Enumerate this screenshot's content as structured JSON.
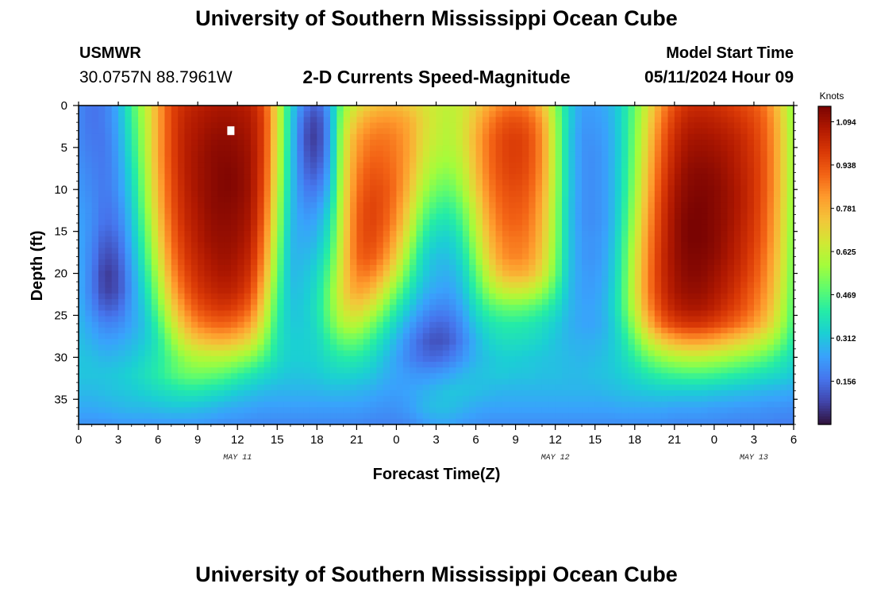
{
  "header": {
    "title": "University of Southern Mississippi Ocean Cube",
    "station_id": "USMWR",
    "station_coords": "30.0757N  88.7961W",
    "subtitle": "2-D Currents Speed-Magnitude",
    "model_label": "Model Start Time",
    "model_time": "05/11/2024 Hour 09"
  },
  "footer": {
    "title": "University of Southern Mississippi Ocean Cube"
  },
  "colors": {
    "scale": [
      "#30123b",
      "#4145ab",
      "#4675ed",
      "#39a2fc",
      "#1bcfd4",
      "#24eca6",
      "#61fc6c",
      "#a4fc3b",
      "#d1e834",
      "#f3c63a",
      "#fe9b2d",
      "#f36315",
      "#d93806",
      "#b11901",
      "#7a0402"
    ]
  },
  "chart_data": {
    "type": "heatmap",
    "xlabel": "Forecast Time(Z)",
    "ylabel": "Depth (ft)",
    "legend_unit": "Knots",
    "x_range": [
      0,
      54
    ],
    "y_range": [
      0,
      38
    ],
    "x_ticks": [
      "0",
      "3",
      "6",
      "9",
      "12",
      "15",
      "18",
      "21",
      "0",
      "3",
      "6",
      "9",
      "12",
      "15",
      "18",
      "21",
      "0",
      "3",
      "6"
    ],
    "y_ticks": [
      "0",
      "5",
      "10",
      "15",
      "20",
      "25",
      "30",
      "35"
    ],
    "date_labels": [
      {
        "text": "MAY 11",
        "hour": 12
      },
      {
        "text": "MAY 12",
        "hour": 36
      },
      {
        "text": "MAY 13",
        "hour": 51
      }
    ],
    "colorbar_ticks": [
      "1.094",
      "0.938",
      "0.781",
      "0.625",
      "0.469",
      "0.312",
      "0.156"
    ],
    "colorbar_range": [
      0,
      1.15
    ],
    "grid_hours": [
      0,
      1,
      2,
      3,
      4,
      5,
      6,
      7,
      8,
      9,
      10,
      11,
      12,
      13,
      14,
      15,
      16,
      17,
      18,
      19,
      20,
      21,
      22,
      23,
      24,
      25,
      26,
      27,
      28,
      29,
      30,
      31,
      32,
      33,
      34,
      35,
      36,
      37,
      38,
      39,
      40,
      41,
      42,
      43,
      44,
      45,
      46,
      47,
      48,
      49,
      50,
      51,
      52,
      53,
      54
    ],
    "grid_depths_ft": [
      0,
      2,
      4,
      6,
      8,
      10,
      12,
      14,
      16,
      18,
      20,
      22,
      24,
      26,
      28,
      30,
      32,
      34,
      36,
      38
    ],
    "speed_knots_by_depth": [
      [
        0.2,
        0.16,
        0.18,
        0.27,
        0.44,
        0.61,
        0.8,
        0.96,
        1.02,
        1.05,
        1.07,
        1.08,
        1.07,
        1.05,
        0.95,
        0.68,
        0.35,
        0.18,
        0.12,
        0.26,
        0.55,
        0.67,
        0.73,
        0.76,
        0.76,
        0.73,
        0.68,
        0.64,
        0.62,
        0.65,
        0.72,
        0.8,
        0.86,
        0.88,
        0.85,
        0.76,
        0.55,
        0.34,
        0.24,
        0.24,
        0.27,
        0.35,
        0.5,
        0.67,
        0.83,
        0.95,
        1.01,
        1.02,
        1.01,
        0.99,
        0.96,
        0.93,
        0.86,
        0.72,
        0.53
      ],
      [
        0.2,
        0.16,
        0.18,
        0.26,
        0.42,
        0.6,
        0.8,
        0.96,
        1.04,
        1.07,
        1.09,
        1.1,
        1.09,
        1.07,
        0.97,
        0.68,
        0.34,
        0.13,
        0.07,
        0.24,
        0.6,
        0.75,
        0.82,
        0.84,
        0.83,
        0.79,
        0.7,
        0.64,
        0.61,
        0.66,
        0.76,
        0.86,
        0.93,
        0.95,
        0.92,
        0.82,
        0.58,
        0.34,
        0.23,
        0.23,
        0.26,
        0.35,
        0.51,
        0.7,
        0.87,
        0.99,
        1.05,
        1.06,
        1.05,
        1.03,
        1.0,
        0.96,
        0.89,
        0.74,
        0.54
      ],
      [
        0.2,
        0.17,
        0.17,
        0.25,
        0.4,
        0.59,
        0.8,
        0.96,
        1.05,
        1.08,
        1.11,
        1.12,
        1.11,
        1.08,
        0.97,
        0.67,
        0.34,
        0.11,
        0.06,
        0.24,
        0.63,
        0.81,
        0.87,
        0.88,
        0.86,
        0.8,
        0.69,
        0.63,
        0.6,
        0.66,
        0.78,
        0.89,
        0.96,
        0.98,
        0.95,
        0.84,
        0.59,
        0.33,
        0.22,
        0.22,
        0.25,
        0.35,
        0.52,
        0.72,
        0.9,
        1.02,
        1.08,
        1.09,
        1.08,
        1.06,
        1.03,
        0.98,
        0.9,
        0.75,
        0.55
      ],
      [
        0.21,
        0.18,
        0.17,
        0.24,
        0.38,
        0.58,
        0.8,
        0.96,
        1.05,
        1.09,
        1.12,
        1.13,
        1.12,
        1.09,
        0.97,
        0.66,
        0.33,
        0.13,
        0.08,
        0.25,
        0.64,
        0.83,
        0.9,
        0.9,
        0.87,
        0.8,
        0.67,
        0.6,
        0.58,
        0.64,
        0.77,
        0.89,
        0.96,
        0.98,
        0.95,
        0.84,
        0.59,
        0.33,
        0.22,
        0.21,
        0.25,
        0.35,
        0.53,
        0.74,
        0.92,
        1.04,
        1.1,
        1.11,
        1.1,
        1.08,
        1.04,
        0.99,
        0.91,
        0.75,
        0.55
      ],
      [
        0.22,
        0.19,
        0.17,
        0.23,
        0.36,
        0.56,
        0.79,
        0.95,
        1.05,
        1.09,
        1.12,
        1.14,
        1.13,
        1.09,
        0.96,
        0.65,
        0.33,
        0.15,
        0.12,
        0.27,
        0.65,
        0.86,
        0.93,
        0.92,
        0.88,
        0.78,
        0.64,
        0.56,
        0.54,
        0.61,
        0.75,
        0.88,
        0.95,
        0.97,
        0.94,
        0.83,
        0.59,
        0.33,
        0.22,
        0.21,
        0.25,
        0.36,
        0.54,
        0.76,
        0.94,
        1.06,
        1.12,
        1.13,
        1.12,
        1.09,
        1.05,
        1.0,
        0.91,
        0.75,
        0.55
      ],
      [
        0.23,
        0.2,
        0.17,
        0.22,
        0.34,
        0.54,
        0.77,
        0.94,
        1.04,
        1.09,
        1.12,
        1.14,
        1.13,
        1.09,
        0.95,
        0.63,
        0.32,
        0.18,
        0.17,
        0.3,
        0.66,
        0.88,
        0.95,
        0.94,
        0.88,
        0.75,
        0.59,
        0.51,
        0.49,
        0.57,
        0.72,
        0.86,
        0.93,
        0.95,
        0.92,
        0.81,
        0.58,
        0.33,
        0.22,
        0.21,
        0.25,
        0.36,
        0.56,
        0.78,
        0.96,
        1.08,
        1.13,
        1.14,
        1.13,
        1.1,
        1.06,
        1.0,
        0.91,
        0.75,
        0.54
      ],
      [
        0.24,
        0.21,
        0.16,
        0.2,
        0.32,
        0.52,
        0.75,
        0.93,
        1.03,
        1.08,
        1.12,
        1.13,
        1.12,
        1.08,
        0.93,
        0.61,
        0.31,
        0.21,
        0.22,
        0.34,
        0.67,
        0.9,
        0.97,
        0.94,
        0.86,
        0.71,
        0.53,
        0.45,
        0.43,
        0.51,
        0.67,
        0.83,
        0.91,
        0.93,
        0.9,
        0.79,
        0.57,
        0.32,
        0.22,
        0.21,
        0.25,
        0.37,
        0.58,
        0.8,
        0.98,
        1.09,
        1.14,
        1.15,
        1.13,
        1.1,
        1.06,
        1.0,
        0.9,
        0.74,
        0.53
      ],
      [
        0.25,
        0.21,
        0.15,
        0.18,
        0.3,
        0.49,
        0.72,
        0.91,
        1.02,
        1.07,
        1.11,
        1.12,
        1.11,
        1.07,
        0.91,
        0.59,
        0.3,
        0.24,
        0.26,
        0.38,
        0.68,
        0.91,
        0.97,
        0.93,
        0.83,
        0.66,
        0.47,
        0.39,
        0.38,
        0.46,
        0.63,
        0.8,
        0.89,
        0.91,
        0.88,
        0.77,
        0.56,
        0.32,
        0.22,
        0.21,
        0.25,
        0.38,
        0.6,
        0.82,
        0.99,
        1.1,
        1.15,
        1.15,
        1.13,
        1.1,
        1.05,
        0.99,
        0.89,
        0.73,
        0.52
      ],
      [
        0.26,
        0.2,
        0.12,
        0.15,
        0.28,
        0.46,
        0.69,
        0.89,
        1.0,
        1.06,
        1.1,
        1.11,
        1.1,
        1.05,
        0.88,
        0.56,
        0.29,
        0.26,
        0.29,
        0.41,
        0.69,
        0.91,
        0.96,
        0.9,
        0.78,
        0.6,
        0.41,
        0.34,
        0.33,
        0.41,
        0.59,
        0.76,
        0.86,
        0.88,
        0.86,
        0.75,
        0.55,
        0.32,
        0.23,
        0.22,
        0.26,
        0.4,
        0.62,
        0.84,
        1.0,
        1.1,
        1.15,
        1.15,
        1.13,
        1.09,
        1.04,
        0.98,
        0.88,
        0.72,
        0.51
      ],
      [
        0.26,
        0.19,
        0.09,
        0.12,
        0.26,
        0.43,
        0.65,
        0.86,
        0.98,
        1.04,
        1.08,
        1.1,
        1.08,
        1.03,
        0.85,
        0.53,
        0.29,
        0.28,
        0.32,
        0.45,
        0.7,
        0.9,
        0.93,
        0.86,
        0.72,
        0.53,
        0.36,
        0.3,
        0.3,
        0.37,
        0.54,
        0.72,
        0.83,
        0.86,
        0.83,
        0.73,
        0.53,
        0.32,
        0.23,
        0.22,
        0.27,
        0.41,
        0.64,
        0.85,
        1.01,
        1.1,
        1.14,
        1.14,
        1.12,
        1.08,
        1.03,
        0.96,
        0.86,
        0.71,
        0.5
      ],
      [
        0.27,
        0.18,
        0.06,
        0.1,
        0.24,
        0.39,
        0.6,
        0.82,
        0.95,
        1.02,
        1.06,
        1.08,
        1.06,
        1.0,
        0.81,
        0.5,
        0.29,
        0.3,
        0.35,
        0.49,
        0.71,
        0.86,
        0.87,
        0.78,
        0.63,
        0.46,
        0.33,
        0.28,
        0.27,
        0.33,
        0.48,
        0.65,
        0.76,
        0.79,
        0.77,
        0.68,
        0.51,
        0.31,
        0.24,
        0.23,
        0.28,
        0.42,
        0.65,
        0.86,
        1.01,
        1.09,
        1.13,
        1.13,
        1.1,
        1.06,
        1.01,
        0.94,
        0.84,
        0.69,
        0.49
      ],
      [
        0.27,
        0.18,
        0.07,
        0.1,
        0.23,
        0.36,
        0.55,
        0.77,
        0.91,
        0.99,
        1.03,
        1.05,
        1.03,
        0.96,
        0.76,
        0.47,
        0.3,
        0.31,
        0.37,
        0.52,
        0.71,
        0.81,
        0.78,
        0.67,
        0.52,
        0.39,
        0.29,
        0.25,
        0.24,
        0.3,
        0.43,
        0.56,
        0.64,
        0.66,
        0.64,
        0.57,
        0.45,
        0.3,
        0.24,
        0.24,
        0.29,
        0.43,
        0.65,
        0.86,
        1.0,
        1.08,
        1.11,
        1.11,
        1.08,
        1.04,
        0.98,
        0.91,
        0.82,
        0.67,
        0.48
      ],
      [
        0.28,
        0.2,
        0.12,
        0.14,
        0.24,
        0.33,
        0.5,
        0.7,
        0.85,
        0.94,
        0.98,
        1.0,
        0.97,
        0.9,
        0.7,
        0.44,
        0.31,
        0.32,
        0.38,
        0.52,
        0.67,
        0.73,
        0.67,
        0.55,
        0.42,
        0.32,
        0.24,
        0.2,
        0.2,
        0.26,
        0.37,
        0.46,
        0.5,
        0.51,
        0.49,
        0.45,
        0.38,
        0.29,
        0.25,
        0.25,
        0.3,
        0.43,
        0.63,
        0.83,
        0.97,
        1.05,
        1.08,
        1.08,
        1.05,
        1.0,
        0.95,
        0.88,
        0.79,
        0.64,
        0.46
      ],
      [
        0.29,
        0.24,
        0.19,
        0.2,
        0.25,
        0.31,
        0.44,
        0.62,
        0.77,
        0.86,
        0.9,
        0.91,
        0.88,
        0.81,
        0.63,
        0.41,
        0.32,
        0.32,
        0.37,
        0.49,
        0.6,
        0.62,
        0.54,
        0.44,
        0.34,
        0.25,
        0.18,
        0.14,
        0.15,
        0.22,
        0.32,
        0.38,
        0.41,
        0.41,
        0.4,
        0.37,
        0.33,
        0.28,
        0.25,
        0.25,
        0.29,
        0.4,
        0.57,
        0.76,
        0.9,
        0.97,
        1.0,
        1.0,
        0.97,
        0.93,
        0.88,
        0.82,
        0.73,
        0.6,
        0.44
      ],
      [
        0.3,
        0.27,
        0.24,
        0.25,
        0.28,
        0.32,
        0.4,
        0.54,
        0.67,
        0.74,
        0.77,
        0.78,
        0.75,
        0.69,
        0.55,
        0.39,
        0.33,
        0.33,
        0.35,
        0.43,
        0.5,
        0.5,
        0.44,
        0.36,
        0.28,
        0.2,
        0.13,
        0.1,
        0.12,
        0.19,
        0.28,
        0.34,
        0.37,
        0.37,
        0.36,
        0.34,
        0.31,
        0.28,
        0.27,
        0.27,
        0.3,
        0.37,
        0.49,
        0.63,
        0.73,
        0.79,
        0.82,
        0.82,
        0.8,
        0.76,
        0.72,
        0.67,
        0.61,
        0.52,
        0.4
      ],
      [
        0.31,
        0.3,
        0.28,
        0.29,
        0.31,
        0.35,
        0.4,
        0.48,
        0.56,
        0.6,
        0.61,
        0.61,
        0.58,
        0.54,
        0.46,
        0.37,
        0.33,
        0.33,
        0.34,
        0.38,
        0.41,
        0.41,
        0.37,
        0.31,
        0.25,
        0.19,
        0.15,
        0.14,
        0.17,
        0.22,
        0.28,
        0.31,
        0.33,
        0.33,
        0.32,
        0.31,
        0.3,
        0.29,
        0.28,
        0.29,
        0.31,
        0.35,
        0.42,
        0.5,
        0.56,
        0.6,
        0.62,
        0.62,
        0.6,
        0.58,
        0.55,
        0.52,
        0.48,
        0.42,
        0.36
      ],
      [
        0.31,
        0.31,
        0.31,
        0.32,
        0.34,
        0.37,
        0.41,
        0.46,
        0.5,
        0.51,
        0.5,
        0.48,
        0.44,
        0.4,
        0.36,
        0.33,
        0.31,
        0.31,
        0.32,
        0.34,
        0.35,
        0.34,
        0.32,
        0.28,
        0.25,
        0.23,
        0.22,
        0.23,
        0.25,
        0.28,
        0.3,
        0.31,
        0.32,
        0.31,
        0.31,
        0.3,
        0.3,
        0.29,
        0.29,
        0.3,
        0.31,
        0.33,
        0.36,
        0.4,
        0.43,
        0.45,
        0.46,
        0.46,
        0.45,
        0.43,
        0.41,
        0.39,
        0.37,
        0.35,
        0.32
      ],
      [
        0.29,
        0.29,
        0.3,
        0.31,
        0.32,
        0.34,
        0.36,
        0.38,
        0.4,
        0.4,
        0.38,
        0.36,
        0.33,
        0.31,
        0.29,
        0.28,
        0.28,
        0.28,
        0.28,
        0.29,
        0.29,
        0.28,
        0.27,
        0.25,
        0.24,
        0.25,
        0.27,
        0.29,
        0.31,
        0.31,
        0.3,
        0.29,
        0.28,
        0.28,
        0.28,
        0.28,
        0.28,
        0.28,
        0.28,
        0.28,
        0.29,
        0.3,
        0.31,
        0.32,
        0.33,
        0.33,
        0.33,
        0.33,
        0.32,
        0.31,
        0.3,
        0.29,
        0.28,
        0.27,
        0.26
      ],
      [
        0.26,
        0.26,
        0.27,
        0.28,
        0.29,
        0.29,
        0.3,
        0.31,
        0.31,
        0.3,
        0.29,
        0.27,
        0.26,
        0.25,
        0.24,
        0.24,
        0.24,
        0.24,
        0.24,
        0.24,
        0.24,
        0.24,
        0.23,
        0.22,
        0.22,
        0.24,
        0.28,
        0.3,
        0.3,
        0.28,
        0.26,
        0.25,
        0.25,
        0.25,
        0.25,
        0.25,
        0.25,
        0.25,
        0.25,
        0.25,
        0.25,
        0.26,
        0.26,
        0.26,
        0.26,
        0.25,
        0.25,
        0.25,
        0.24,
        0.24,
        0.23,
        0.23,
        0.22,
        0.22,
        0.21
      ],
      [
        0.22,
        0.22,
        0.22,
        0.23,
        0.23,
        0.23,
        0.23,
        0.23,
        0.23,
        0.23,
        0.22,
        0.21,
        0.21,
        0.2,
        0.2,
        0.2,
        0.2,
        0.2,
        0.2,
        0.2,
        0.2,
        0.2,
        0.19,
        0.19,
        0.19,
        0.2,
        0.23,
        0.25,
        0.25,
        0.23,
        0.22,
        0.21,
        0.21,
        0.21,
        0.21,
        0.21,
        0.21,
        0.21,
        0.21,
        0.21,
        0.21,
        0.21,
        0.21,
        0.21,
        0.21,
        0.2,
        0.2,
        0.2,
        0.2,
        0.19,
        0.19,
        0.19,
        0.19,
        0.18,
        0.18
      ]
    ],
    "annotations": [
      {
        "label": "",
        "hour": 11.5,
        "depth_ft": 3
      }
    ]
  }
}
